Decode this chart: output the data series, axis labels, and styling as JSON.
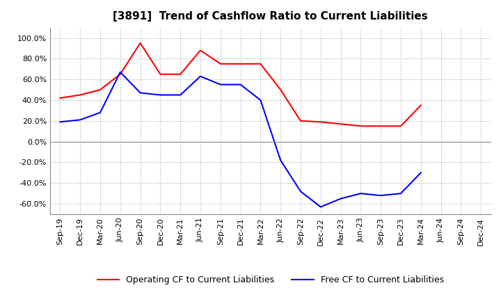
{
  "title": "[3891]  Trend of Cashflow Ratio to Current Liabilities",
  "x_labels": [
    "Sep-19",
    "Dec-19",
    "Mar-20",
    "Jun-20",
    "Sep-20",
    "Dec-20",
    "Mar-21",
    "Jun-21",
    "Sep-21",
    "Dec-21",
    "Mar-22",
    "Jun-22",
    "Sep-22",
    "Dec-22",
    "Mar-23",
    "Jun-23",
    "Sep-23",
    "Dec-23",
    "Mar-24",
    "Jun-24",
    "Sep-24",
    "Dec-24"
  ],
  "operating_cf": [
    42.0,
    45.0,
    50.0,
    65.0,
    95.0,
    65.0,
    65.0,
    88.0,
    75.0,
    75.0,
    75.0,
    50.0,
    20.0,
    19.0,
    17.0,
    15.0,
    15.0,
    15.0,
    35.0,
    null,
    null,
    null
  ],
  "free_cf": [
    19.0,
    21.0,
    28.0,
    67.0,
    47.0,
    45.0,
    45.0,
    63.0,
    55.0,
    55.0,
    40.0,
    -18.0,
    -48.0,
    -63.0,
    -55.0,
    -50.0,
    -52.0,
    -50.0,
    -30.0,
    null,
    null,
    null
  ],
  "ylim": [
    -70,
    110
  ],
  "yticks": [
    100.0,
    80.0,
    60.0,
    40.0,
    20.0,
    0.0,
    -20.0,
    -40.0,
    -60.0
  ],
  "operating_color": "#ff0000",
  "free_color": "#0000ff",
  "grid_color": "#aaaaaa",
  "background_color": "#ffffff",
  "legend_operating": "Operating CF to Current Liabilities",
  "legend_free": "Free CF to Current Liabilities"
}
